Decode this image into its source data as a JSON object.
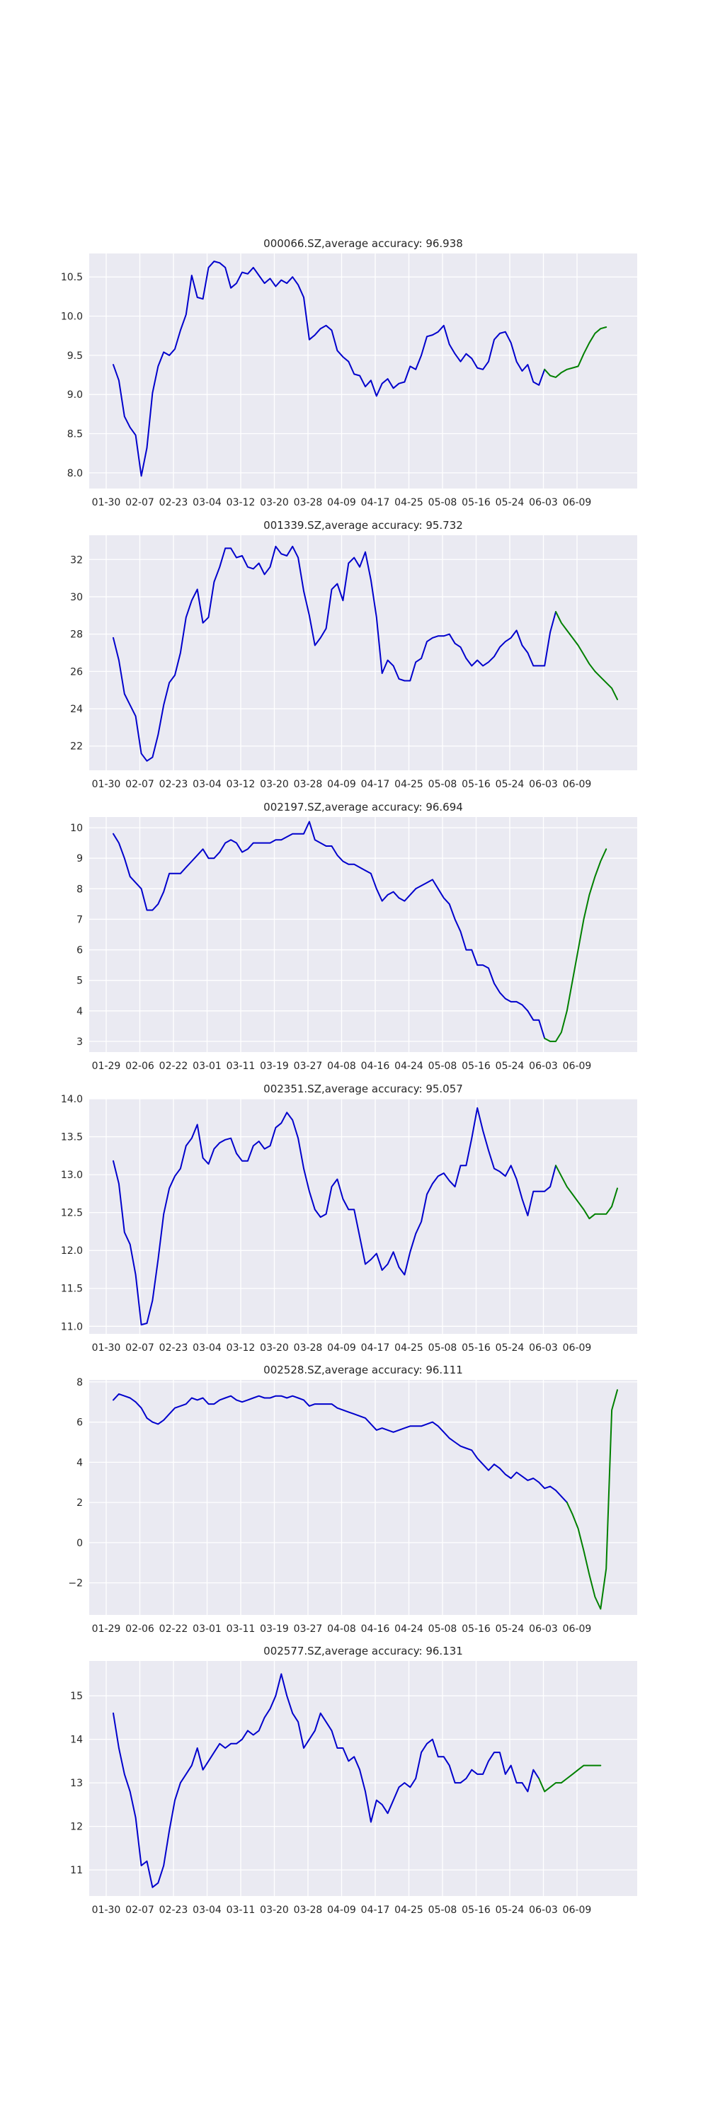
{
  "figure": {
    "background": "#ffffff",
    "axes_bg": "#eaeaf2",
    "grid_color": "#ffffff",
    "history_color": "#0000cc",
    "forecast_color": "#008000"
  },
  "chart_data": [
    {
      "type": "line",
      "title": "000066.SZ,average accuracy: 96.938",
      "xtick_labels": [
        "01-30",
        "02-07",
        "02-23",
        "03-04",
        "03-12",
        "03-20",
        "03-28",
        "04-09",
        "04-17",
        "04-25",
        "05-08",
        "05-16",
        "05-24",
        "06-03",
        "06-09"
      ],
      "yticks": [
        8.0,
        8.5,
        9.0,
        9.5,
        10.0,
        10.5
      ],
      "ytick_labels": [
        "8.0",
        "8.5",
        "9.0",
        "9.5",
        "10.0",
        "10.5"
      ],
      "ylim": [
        7.8,
        10.8
      ],
      "grid": true,
      "series": [
        {
          "role": "history",
          "color": "#0000cc",
          "x_start": 0,
          "values": [
            9.38,
            9.18,
            8.72,
            8.58,
            8.48,
            7.96,
            8.32,
            9.02,
            9.36,
            9.54,
            9.5,
            9.58,
            9.82,
            10.02,
            10.52,
            10.24,
            10.22,
            10.62,
            10.7,
            10.68,
            10.62,
            10.36,
            10.42,
            10.56,
            10.54,
            10.62,
            10.52,
            10.42,
            10.48,
            10.38,
            10.46,
            10.42,
            10.5,
            10.4,
            10.24,
            9.7,
            9.76,
            9.84,
            9.88,
            9.82,
            9.56,
            9.48,
            9.42,
            9.26,
            9.24,
            9.1,
            9.18,
            8.98,
            9.14,
            9.2,
            9.08,
            9.14,
            9.16,
            9.36,
            9.32,
            9.5,
            9.74,
            9.76,
            9.8,
            9.88,
            9.64,
            9.52,
            9.42,
            9.52,
            9.46,
            9.34,
            9.32,
            9.42,
            9.7,
            9.78,
            9.8,
            9.66,
            9.42,
            9.3,
            9.38,
            9.16,
            9.12,
            9.32
          ]
        },
        {
          "role": "forecast",
          "color": "#008000",
          "x_start": 77,
          "values": [
            9.32,
            9.24,
            9.22,
            9.28,
            9.32,
            9.34,
            9.36,
            9.52,
            9.66,
            9.78,
            9.84,
            9.86
          ]
        }
      ]
    },
    {
      "type": "line",
      "title": "001339.SZ,average accuracy: 95.732",
      "xtick_labels": [
        "01-30",
        "02-07",
        "02-23",
        "03-04",
        "03-12",
        "03-20",
        "03-28",
        "04-09",
        "04-17",
        "04-25",
        "05-08",
        "05-16",
        "05-24",
        "06-03",
        "06-09"
      ],
      "yticks": [
        22,
        24,
        26,
        28,
        30,
        32
      ],
      "ytick_labels": [
        "22",
        "24",
        "26",
        "28",
        "30",
        "32"
      ],
      "ylim": [
        20.7,
        33.3
      ],
      "grid": true,
      "series": [
        {
          "role": "history",
          "color": "#0000cc",
          "x_start": 0,
          "values": [
            27.8,
            26.6,
            24.8,
            24.2,
            23.6,
            21.6,
            21.2,
            21.4,
            22.6,
            24.2,
            25.4,
            25.8,
            27.0,
            28.9,
            29.8,
            30.4,
            28.6,
            28.9,
            30.8,
            31.6,
            32.6,
            32.6,
            32.1,
            32.2,
            31.6,
            31.5,
            31.8,
            31.2,
            31.6,
            32.7,
            32.3,
            32.2,
            32.7,
            32.1,
            30.3,
            29.0,
            27.4,
            27.8,
            28.3,
            30.4,
            30.7,
            29.8,
            31.8,
            32.1,
            31.6,
            32.4,
            30.9,
            28.9,
            25.9,
            26.6,
            26.3,
            25.6,
            25.5,
            25.5,
            26.5,
            26.7,
            27.6,
            27.8,
            27.9,
            27.9,
            28.0,
            27.5,
            27.3,
            26.7,
            26.3,
            26.6,
            26.3,
            26.5,
            26.8,
            27.3,
            27.6,
            27.8,
            28.2,
            27.4,
            27.0,
            26.3,
            26.3,
            26.3,
            28.1,
            29.2
          ]
        },
        {
          "role": "forecast",
          "color": "#008000",
          "x_start": 79,
          "values": [
            29.2,
            28.6,
            28.2,
            27.8,
            27.4,
            26.9,
            26.4,
            26.0,
            25.7,
            25.4,
            25.1,
            24.5
          ]
        }
      ]
    },
    {
      "type": "line",
      "title": "002197.SZ,average accuracy: 96.694",
      "xtick_labels": [
        "01-29",
        "02-06",
        "02-22",
        "03-01",
        "03-11",
        "03-19",
        "03-27",
        "04-08",
        "04-16",
        "04-24",
        "05-08",
        "05-16",
        "05-24",
        "06-03",
        "06-09"
      ],
      "yticks": [
        3,
        4,
        5,
        6,
        7,
        8,
        9,
        10
      ],
      "ytick_labels": [
        "3",
        "4",
        "5",
        "6",
        "7",
        "8",
        "9",
        "10"
      ],
      "ylim": [
        2.65,
        10.35
      ],
      "grid": true,
      "series": [
        {
          "role": "history",
          "color": "#0000cc",
          "x_start": 0,
          "values": [
            9.8,
            9.5,
            9.0,
            8.4,
            8.2,
            8.0,
            7.3,
            7.3,
            7.5,
            7.9,
            8.5,
            8.5,
            8.5,
            8.7,
            8.9,
            9.1,
            9.3,
            9.0,
            9.0,
            9.2,
            9.5,
            9.6,
            9.5,
            9.2,
            9.3,
            9.5,
            9.5,
            9.5,
            9.5,
            9.6,
            9.6,
            9.7,
            9.8,
            9.8,
            9.8,
            10.2,
            9.6,
            9.5,
            9.4,
            9.4,
            9.1,
            8.9,
            8.8,
            8.8,
            8.7,
            8.6,
            8.5,
            8.0,
            7.6,
            7.8,
            7.9,
            7.7,
            7.6,
            7.8,
            8.0,
            8.1,
            8.2,
            8.3,
            8.0,
            7.7,
            7.5,
            7.0,
            6.6,
            6.0,
            6.0,
            5.5,
            5.5,
            5.4,
            4.9,
            4.6,
            4.4,
            4.3,
            4.3,
            4.2,
            4.0,
            3.7,
            3.7,
            3.1
          ]
        },
        {
          "role": "forecast",
          "color": "#008000",
          "x_start": 77,
          "values": [
            3.1,
            3.0,
            3.0,
            3.3,
            4.0,
            5.0,
            6.0,
            7.0,
            7.8,
            8.4,
            8.9,
            9.3
          ]
        }
      ]
    },
    {
      "type": "line",
      "title": "002351.SZ,average accuracy: 95.057",
      "xtick_labels": [
        "01-30",
        "02-07",
        "02-23",
        "03-04",
        "03-12",
        "03-20",
        "03-28",
        "04-09",
        "04-17",
        "04-25",
        "05-08",
        "05-16",
        "05-24",
        "06-03",
        "06-09"
      ],
      "yticks": [
        11.0,
        11.5,
        12.0,
        12.5,
        13.0,
        13.5,
        14.0
      ],
      "ytick_labels": [
        "11.0",
        "11.5",
        "12.0",
        "12.5",
        "13.0",
        "13.5",
        "14.0"
      ],
      "ylim": [
        10.9,
        14.0
      ],
      "grid": true,
      "series": [
        {
          "role": "history",
          "color": "#0000cc",
          "x_start": 0,
          "values": [
            13.18,
            12.88,
            12.24,
            12.08,
            11.68,
            11.02,
            11.04,
            11.34,
            11.88,
            12.48,
            12.82,
            12.98,
            13.08,
            13.38,
            13.48,
            13.66,
            13.22,
            13.14,
            13.34,
            13.42,
            13.46,
            13.48,
            13.28,
            13.18,
            13.18,
            13.38,
            13.44,
            13.34,
            13.38,
            13.62,
            13.68,
            13.82,
            13.72,
            13.48,
            13.08,
            12.78,
            12.54,
            12.44,
            12.48,
            12.84,
            12.94,
            12.68,
            12.54,
            12.54,
            12.18,
            11.82,
            11.88,
            11.96,
            11.74,
            11.82,
            11.98,
            11.78,
            11.68,
            11.98,
            12.22,
            12.38,
            12.74,
            12.88,
            12.98,
            13.02,
            12.92,
            12.84,
            13.12,
            13.12,
            13.48,
            13.88,
            13.58,
            13.32,
            13.08,
            13.04,
            12.98,
            13.12,
            12.94,
            12.68,
            12.46,
            12.78,
            12.78,
            12.78,
            12.84,
            13.12
          ]
        },
        {
          "role": "forecast",
          "color": "#008000",
          "x_start": 79,
          "values": [
            13.12,
            12.98,
            12.84,
            12.74,
            12.64,
            12.54,
            12.42,
            12.48,
            12.48,
            12.48,
            12.58,
            12.82
          ]
        }
      ]
    },
    {
      "type": "line",
      "title": "002528.SZ,average accuracy: 96.111",
      "xtick_labels": [
        "01-29",
        "02-06",
        "02-22",
        "03-01",
        "03-11",
        "03-19",
        "03-27",
        "04-08",
        "04-16",
        "04-24",
        "05-08",
        "05-16",
        "05-24",
        "06-03",
        "06-09"
      ],
      "yticks": [
        -2,
        0,
        2,
        4,
        6,
        8
      ],
      "ytick_labels": [
        "−2",
        "0",
        "2",
        "4",
        "6",
        "8"
      ],
      "ylim": [
        -3.6,
        8.1
      ],
      "grid": true,
      "series": [
        {
          "role": "history",
          "color": "#0000cc",
          "x_start": 0,
          "values": [
            7.1,
            7.4,
            7.3,
            7.2,
            7.0,
            6.7,
            6.2,
            6.0,
            5.9,
            6.1,
            6.4,
            6.7,
            6.8,
            6.9,
            7.2,
            7.1,
            7.2,
            6.9,
            6.9,
            7.1,
            7.2,
            7.3,
            7.1,
            7.0,
            7.1,
            7.2,
            7.3,
            7.2,
            7.2,
            7.3,
            7.3,
            7.2,
            7.3,
            7.2,
            7.1,
            6.8,
            6.9,
            6.9,
            6.9,
            6.9,
            6.7,
            6.6,
            6.5,
            6.4,
            6.3,
            6.2,
            5.9,
            5.6,
            5.7,
            5.6,
            5.5,
            5.6,
            5.7,
            5.8,
            5.8,
            5.8,
            5.9,
            6.0,
            5.8,
            5.5,
            5.2,
            5.0,
            4.8,
            4.7,
            4.6,
            4.2,
            3.9,
            3.6,
            3.9,
            3.7,
            3.4,
            3.2,
            3.5,
            3.3,
            3.1,
            3.2,
            3.0,
            2.7,
            2.8,
            2.6,
            2.3,
            2.0
          ]
        },
        {
          "role": "forecast",
          "color": "#008000",
          "x_start": 81,
          "values": [
            2.0,
            1.4,
            0.7,
            -0.4,
            -1.6,
            -2.7,
            -3.3,
            -1.3,
            6.6,
            7.6
          ]
        }
      ]
    },
    {
      "type": "line",
      "title": "002577.SZ,average accuracy: 96.131",
      "xtick_labels": [
        "01-30",
        "02-07",
        "02-23",
        "03-04",
        "03-11",
        "03-20",
        "03-28",
        "04-09",
        "04-17",
        "04-25",
        "05-08",
        "05-16",
        "05-24",
        "06-03",
        "06-09"
      ],
      "yticks": [
        11,
        12,
        13,
        14,
        15
      ],
      "ytick_labels": [
        "11",
        "12",
        "13",
        "14",
        "15"
      ],
      "ylim": [
        10.4,
        15.8
      ],
      "grid": true,
      "series": [
        {
          "role": "history",
          "color": "#0000cc",
          "x_start": 0,
          "values": [
            14.6,
            13.8,
            13.2,
            12.8,
            12.2,
            11.1,
            11.2,
            10.6,
            10.7,
            11.1,
            11.9,
            12.6,
            13.0,
            13.2,
            13.4,
            13.8,
            13.3,
            13.5,
            13.7,
            13.9,
            13.8,
            13.9,
            13.9,
            14.0,
            14.2,
            14.1,
            14.2,
            14.5,
            14.7,
            15.0,
            15.5,
            15.0,
            14.6,
            14.4,
            13.8,
            14.0,
            14.2,
            14.6,
            14.4,
            14.2,
            13.8,
            13.8,
            13.5,
            13.6,
            13.3,
            12.8,
            12.1,
            12.6,
            12.5,
            12.3,
            12.6,
            12.9,
            13.0,
            12.9,
            13.1,
            13.7,
            13.9,
            14.0,
            13.6,
            13.6,
            13.4,
            13.0,
            13.0,
            13.1,
            13.3,
            13.2,
            13.2,
            13.5,
            13.7,
            13.7,
            13.2,
            13.4,
            13.0,
            13.0,
            12.8,
            13.3,
            13.1
          ]
        },
        {
          "role": "forecast",
          "color": "#008000",
          "x_start": 76,
          "values": [
            13.1,
            12.8,
            12.9,
            13.0,
            13.0,
            13.1,
            13.2,
            13.3,
            13.4,
            13.4,
            13.4,
            13.4
          ]
        }
      ]
    }
  ]
}
